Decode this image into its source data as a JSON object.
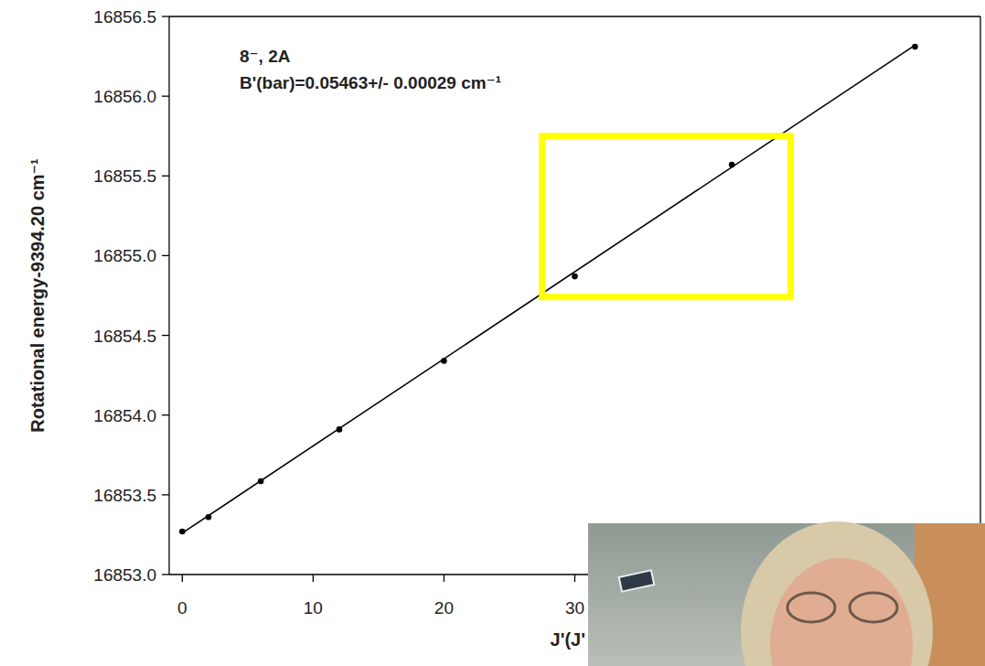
{
  "chart_data": {
    "type": "scatter",
    "title": "8⁻, 2A",
    "subtitle": "B'(bar)=0.05463+/- 0.00029 cm⁻¹",
    "x_label": "J'(J'",
    "y_label": "Rotational energy-9394.20 cm⁻¹",
    "xlim": [
      -1,
      61
    ],
    "xticks": [
      0,
      10,
      20,
      30
    ],
    "ylim": [
      16853.0,
      16856.5
    ],
    "yticks": [
      {
        "value": 16853.0,
        "label": "16853.0"
      },
      {
        "value": 16853.5,
        "label": "16853.5"
      },
      {
        "value": 16854.0,
        "label": "16854.0"
      },
      {
        "value": 16854.5,
        "label": "16854.5"
      },
      {
        "value": 16855.0,
        "label": "16855.0"
      },
      {
        "value": 16855.5,
        "label": "16855.5"
      },
      {
        "value": 16856.0,
        "label": "16856.0"
      },
      {
        "value": 16856.5,
        "label": "16856.5"
      }
    ],
    "grid": false,
    "series": [
      {
        "type": "scatter",
        "color": "#000000",
        "marker": "circle",
        "x": [
          0,
          2,
          6,
          12,
          20,
          30,
          42,
          56
        ],
        "values": [
          16853.27,
          16853.36,
          16853.585,
          16853.91,
          16854.34,
          16854.87,
          16855.57,
          16856.31
        ]
      },
      {
        "type": "line",
        "color": "#000000",
        "line_style": "solid",
        "x": [
          0,
          56
        ],
        "values": [
          16853.26,
          16856.32
        ]
      }
    ],
    "highlight": {
      "x": [
        27.5,
        46.5
      ],
      "y": [
        16854.74,
        16855.75
      ],
      "color": "#ffff00"
    }
  }
}
